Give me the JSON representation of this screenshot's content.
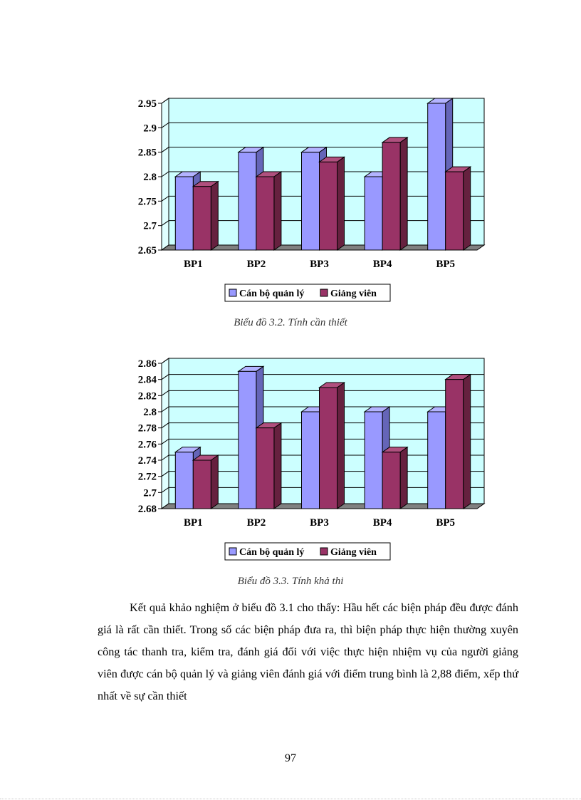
{
  "chart_data": [
    {
      "type": "bar",
      "title": "",
      "categories": [
        "BP1",
        "BP2",
        "BP3",
        "BP4",
        "BP5"
      ],
      "series": [
        {
          "name": "Cán bộ quản lý",
          "values": [
            2.8,
            2.85,
            2.85,
            2.8,
            2.95
          ]
        },
        {
          "name": "Giảng viên",
          "values": [
            2.78,
            2.8,
            2.83,
            2.87,
            2.81
          ]
        }
      ],
      "yticks": [
        "2.65",
        "2.7",
        "2.75",
        "2.8",
        "2.85",
        "2.9",
        "2.95"
      ],
      "ylim": [
        2.65,
        2.95
      ],
      "xlabel": "",
      "ylabel": "",
      "legend": "bottom"
    },
    {
      "type": "bar",
      "title": "",
      "categories": [
        "BP1",
        "BP2",
        "BP3",
        "BP4",
        "BP5"
      ],
      "series": [
        {
          "name": "Cán bộ quản lý",
          "values": [
            2.75,
            2.85,
            2.8,
            2.8,
            2.8
          ]
        },
        {
          "name": "Giảng viên",
          "values": [
            2.74,
            2.78,
            2.83,
            2.75,
            2.84
          ]
        }
      ],
      "yticks": [
        "2.68",
        "2.7",
        "2.72",
        "2.74",
        "2.76",
        "2.78",
        "2.8",
        "2.82",
        "2.84",
        "2.86"
      ],
      "ylim": [
        2.68,
        2.86
      ],
      "xlabel": "",
      "ylabel": "",
      "legend": "bottom"
    }
  ],
  "colors": {
    "series1_front": "#9999ff",
    "series1_side": "#6565b8",
    "series1_top": "#b3b3ff",
    "series2_front": "#993366",
    "series2_side": "#66213f",
    "series2_top": "#b0507e",
    "plot_bg": "#ccffff",
    "floor": "#808080"
  },
  "captions": {
    "chart1": "Biểu đồ 3.2. Tính cần thiết",
    "chart2": "Biểu đồ 3.3. Tính khả thi"
  },
  "paragraph": "Kết quả khảo nghiệm ở biểu đồ 3.1 cho thấy: Hầu hết các biện pháp đều được đánh giá là rất cần thiết. Trong số các biện pháp đưa ra, thì biện pháp thực hiện thường xuyên công tác thanh tra, kiểm tra, đánh giá đối với việc thực hiện nhiệm vụ của người giảng viên được cán bộ quản lý và giảng viên đánh giá với điểm trung bình là 2,88 điểm, xếp thứ nhất về sự cần thiết",
  "page_number": "97"
}
